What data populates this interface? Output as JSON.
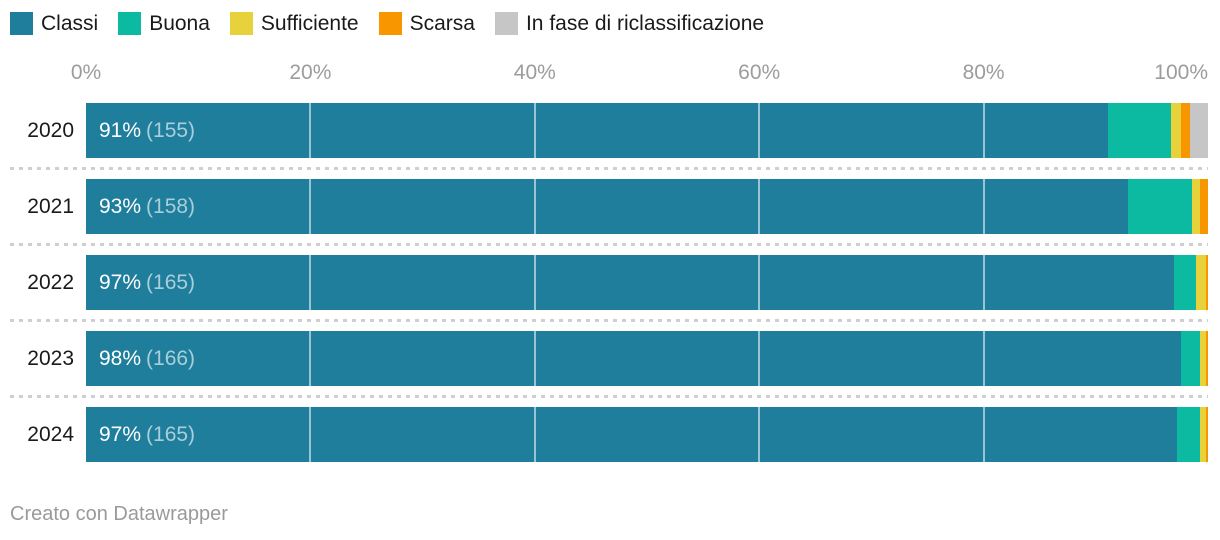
{
  "legend": {
    "items": [
      {
        "label": "Classi",
        "color": "#1e7e9c"
      },
      {
        "label": "Buona",
        "color": "#0cb9a1"
      },
      {
        "label": "Sufficiente",
        "color": "#e8d23c"
      },
      {
        "label": "Scarsa",
        "color": "#f89600"
      },
      {
        "label": "In fase di riclassificazione",
        "color": "#c6c6c6"
      }
    ]
  },
  "axis": {
    "tick_labels": [
      "0%",
      "20%",
      "40%",
      "60%",
      "80%",
      "100%"
    ],
    "tick_values": [
      0,
      20,
      40,
      60,
      80,
      100
    ]
  },
  "chart_data": {
    "type": "bar",
    "stacked": true,
    "orientation": "horizontal",
    "unit": "%",
    "xlim": [
      0,
      100
    ],
    "legend_position": "top",
    "grid": "vertical gridlines at 20% steps, drawn white over bars",
    "categories": [
      "2020",
      "2021",
      "2022",
      "2023",
      "2024"
    ],
    "series": [
      {
        "name": "Classi",
        "color": "#1e7e9c",
        "values": [
          91.1,
          92.9,
          97.0,
          97.6,
          97.2
        ]
      },
      {
        "name": "Buona",
        "color": "#0cb9a1",
        "values": [
          5.6,
          5.7,
          1.9,
          1.7,
          2.1
        ]
      },
      {
        "name": "Sufficiente",
        "color": "#e8d23c",
        "values": [
          0.9,
          0.7,
          0.9,
          0.5,
          0.5
        ]
      },
      {
        "name": "Scarsa",
        "color": "#f89600",
        "values": [
          0.8,
          0.7,
          0.2,
          0.2,
          0.2
        ]
      },
      {
        "name": "In fase di riclassificazione",
        "color": "#c6c6c6",
        "values": [
          1.6,
          0,
          0,
          0,
          0
        ]
      }
    ],
    "bar_labels": [
      {
        "percent": "91%",
        "count": "(155)"
      },
      {
        "percent": "93%",
        "count": "(158)"
      },
      {
        "percent": "97%",
        "count": "(165)"
      },
      {
        "percent": "98%",
        "count": "(166)"
      },
      {
        "percent": "97%",
        "count": "(165)"
      }
    ]
  },
  "colors": {
    "year_label": "#1a1a1a",
    "axis_tick": "#9c9c9c",
    "bar_label": "#ffffff",
    "separator": "#cfcfcf",
    "footer": "#9a9a9a"
  },
  "footer": {
    "credit": "Creato con Datawrapper"
  }
}
